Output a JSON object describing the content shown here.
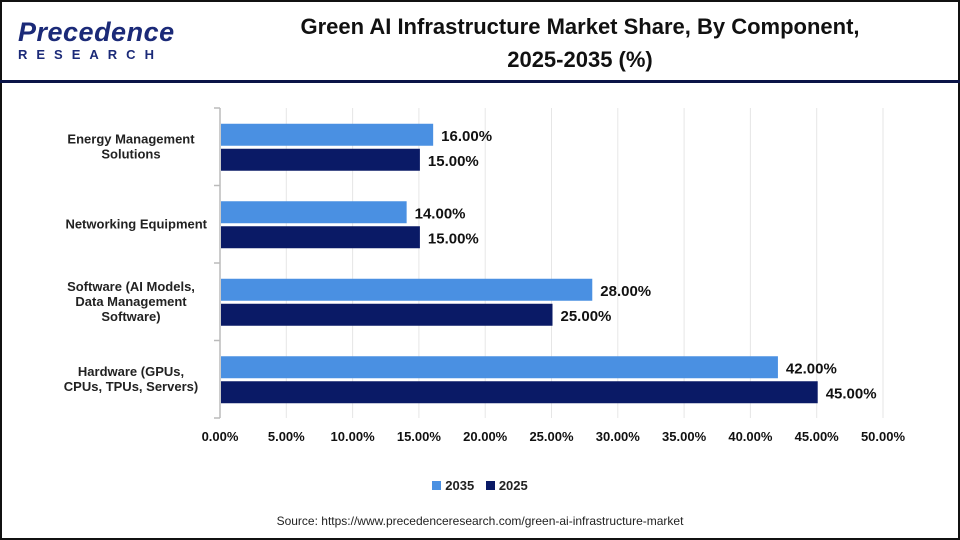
{
  "header": {
    "logo_text": "Precedence",
    "logo_sub": "RESEARCH",
    "title_line1": "Green AI Infrastructure Market Share, By Component,",
    "title_line2": "2025-2035 (%)"
  },
  "source": "Source: https://www.precedenceresearch.com/green-ai-infrastructure-market",
  "chart_data": {
    "type": "bar",
    "orientation": "horizontal",
    "title": "Green AI Infrastructure Market Share, By Component, 2025-2035 (%)",
    "categories": [
      [
        "Energy Management",
        "Solutions"
      ],
      [
        "Networking Equipment"
      ],
      [
        "Software (AI Models,",
        "Data Management",
        "Software)"
      ],
      [
        "Hardware (GPUs,",
        "CPUs, TPUs, Servers)"
      ]
    ],
    "series": [
      {
        "name": "2035",
        "color": "#4a90e2",
        "values": [
          16,
          14,
          28,
          42
        ]
      },
      {
        "name": "2025",
        "color": "#0a1a66",
        "values": [
          15,
          15,
          25,
          45
        ]
      }
    ],
    "data_labels": [
      [
        "16.00%",
        "14.00%",
        "28.00%",
        "42.00%"
      ],
      [
        "15.00%",
        "15.00%",
        "25.00%",
        "45.00%"
      ]
    ],
    "xlim": [
      0,
      50
    ],
    "xticks": [
      "0.00%",
      "5.00%",
      "10.00%",
      "15.00%",
      "20.00%",
      "25.00%",
      "30.00%",
      "35.00%",
      "40.00%",
      "45.00%",
      "50.00%"
    ],
    "grid": true,
    "legend": "bottom"
  }
}
